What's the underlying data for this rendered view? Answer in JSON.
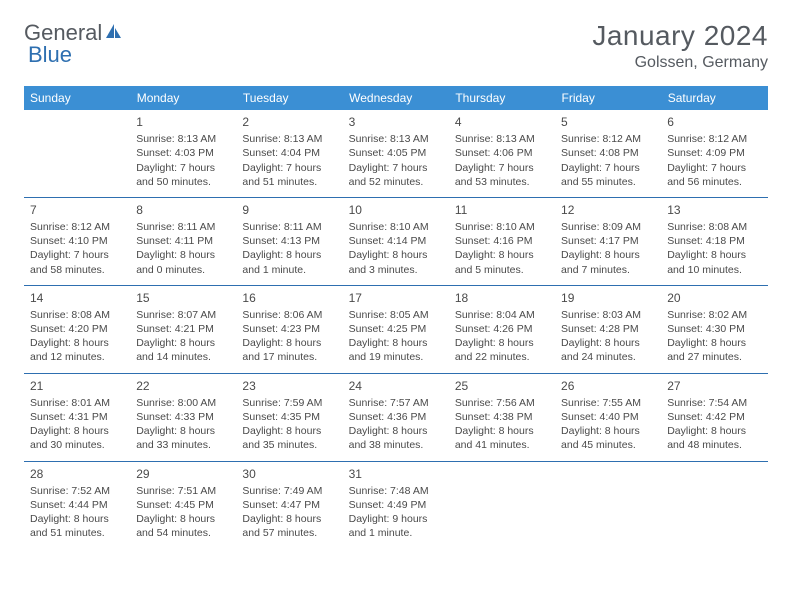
{
  "logo": {
    "text1": "General",
    "text2": "Blue"
  },
  "title": "January 2024",
  "location": "Golssen, Germany",
  "colors": {
    "header_bg": "#3b8fd4",
    "header_text": "#ffffff",
    "border": "#2e6fb0",
    "body_text": "#4a4a4a",
    "title_text": "#555a60",
    "page_bg": "#ffffff"
  },
  "day_headers": [
    "Sunday",
    "Monday",
    "Tuesday",
    "Wednesday",
    "Thursday",
    "Friday",
    "Saturday"
  ],
  "weeks": [
    [
      null,
      {
        "n": "1",
        "sr": "8:13 AM",
        "ss": "4:03 PM",
        "dl": "7 hours and 50 minutes."
      },
      {
        "n": "2",
        "sr": "8:13 AM",
        "ss": "4:04 PM",
        "dl": "7 hours and 51 minutes."
      },
      {
        "n": "3",
        "sr": "8:13 AM",
        "ss": "4:05 PM",
        "dl": "7 hours and 52 minutes."
      },
      {
        "n": "4",
        "sr": "8:13 AM",
        "ss": "4:06 PM",
        "dl": "7 hours and 53 minutes."
      },
      {
        "n": "5",
        "sr": "8:12 AM",
        "ss": "4:08 PM",
        "dl": "7 hours and 55 minutes."
      },
      {
        "n": "6",
        "sr": "8:12 AM",
        "ss": "4:09 PM",
        "dl": "7 hours and 56 minutes."
      }
    ],
    [
      {
        "n": "7",
        "sr": "8:12 AM",
        "ss": "4:10 PM",
        "dl": "7 hours and 58 minutes."
      },
      {
        "n": "8",
        "sr": "8:11 AM",
        "ss": "4:11 PM",
        "dl": "8 hours and 0 minutes."
      },
      {
        "n": "9",
        "sr": "8:11 AM",
        "ss": "4:13 PM",
        "dl": "8 hours and 1 minute."
      },
      {
        "n": "10",
        "sr": "8:10 AM",
        "ss": "4:14 PM",
        "dl": "8 hours and 3 minutes."
      },
      {
        "n": "11",
        "sr": "8:10 AM",
        "ss": "4:16 PM",
        "dl": "8 hours and 5 minutes."
      },
      {
        "n": "12",
        "sr": "8:09 AM",
        "ss": "4:17 PM",
        "dl": "8 hours and 7 minutes."
      },
      {
        "n": "13",
        "sr": "8:08 AM",
        "ss": "4:18 PM",
        "dl": "8 hours and 10 minutes."
      }
    ],
    [
      {
        "n": "14",
        "sr": "8:08 AM",
        "ss": "4:20 PM",
        "dl": "8 hours and 12 minutes."
      },
      {
        "n": "15",
        "sr": "8:07 AM",
        "ss": "4:21 PM",
        "dl": "8 hours and 14 minutes."
      },
      {
        "n": "16",
        "sr": "8:06 AM",
        "ss": "4:23 PM",
        "dl": "8 hours and 17 minutes."
      },
      {
        "n": "17",
        "sr": "8:05 AM",
        "ss": "4:25 PM",
        "dl": "8 hours and 19 minutes."
      },
      {
        "n": "18",
        "sr": "8:04 AM",
        "ss": "4:26 PM",
        "dl": "8 hours and 22 minutes."
      },
      {
        "n": "19",
        "sr": "8:03 AM",
        "ss": "4:28 PM",
        "dl": "8 hours and 24 minutes."
      },
      {
        "n": "20",
        "sr": "8:02 AM",
        "ss": "4:30 PM",
        "dl": "8 hours and 27 minutes."
      }
    ],
    [
      {
        "n": "21",
        "sr": "8:01 AM",
        "ss": "4:31 PM",
        "dl": "8 hours and 30 minutes."
      },
      {
        "n": "22",
        "sr": "8:00 AM",
        "ss": "4:33 PM",
        "dl": "8 hours and 33 minutes."
      },
      {
        "n": "23",
        "sr": "7:59 AM",
        "ss": "4:35 PM",
        "dl": "8 hours and 35 minutes."
      },
      {
        "n": "24",
        "sr": "7:57 AM",
        "ss": "4:36 PM",
        "dl": "8 hours and 38 minutes."
      },
      {
        "n": "25",
        "sr": "7:56 AM",
        "ss": "4:38 PM",
        "dl": "8 hours and 41 minutes."
      },
      {
        "n": "26",
        "sr": "7:55 AM",
        "ss": "4:40 PM",
        "dl": "8 hours and 45 minutes."
      },
      {
        "n": "27",
        "sr": "7:54 AM",
        "ss": "4:42 PM",
        "dl": "8 hours and 48 minutes."
      }
    ],
    [
      {
        "n": "28",
        "sr": "7:52 AM",
        "ss": "4:44 PM",
        "dl": "8 hours and 51 minutes."
      },
      {
        "n": "29",
        "sr": "7:51 AM",
        "ss": "4:45 PM",
        "dl": "8 hours and 54 minutes."
      },
      {
        "n": "30",
        "sr": "7:49 AM",
        "ss": "4:47 PM",
        "dl": "8 hours and 57 minutes."
      },
      {
        "n": "31",
        "sr": "7:48 AM",
        "ss": "4:49 PM",
        "dl": "9 hours and 1 minute."
      },
      null,
      null,
      null
    ]
  ],
  "labels": {
    "sunrise": "Sunrise:",
    "sunset": "Sunset:",
    "daylight": "Daylight:"
  }
}
